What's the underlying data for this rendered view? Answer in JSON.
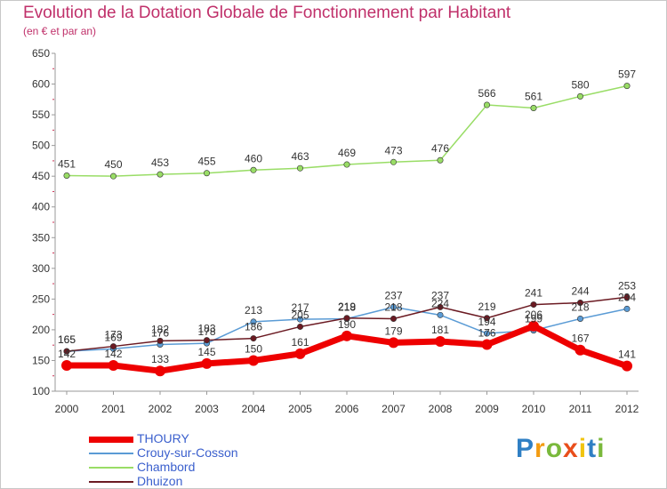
{
  "chart_data": {
    "type": "line",
    "title": "Evolution de la Dotation Globale de Fonctionnement par Habitant",
    "subtitle": "(en € et par an)",
    "xlabel": "",
    "ylabel": "",
    "ylim": [
      100,
      650
    ],
    "yticks": [
      100,
      150,
      200,
      250,
      300,
      350,
      400,
      450,
      500,
      550,
      600,
      650
    ],
    "x": [
      "2000",
      "2001",
      "2002",
      "2003",
      "2004",
      "2005",
      "2006",
      "2007",
      "2008",
      "2009",
      "2010",
      "2011",
      "2012"
    ],
    "grid": false,
    "legend_position": "bottom-left",
    "series": [
      {
        "name": "THOURY",
        "color": "#ee0000",
        "values": [
          142,
          142,
          133,
          145,
          150,
          161,
          190,
          179,
          181,
          176,
          206,
          167,
          141
        ]
      },
      {
        "name": "Crouy-sur-Cosson",
        "color": "#5a9bd5",
        "values": [
          165,
          169,
          176,
          178,
          213,
          217,
          218,
          237,
          224,
          194,
          199,
          218,
          234
        ]
      },
      {
        "name": "Chambord",
        "color": "#99dd66",
        "values": [
          451,
          450,
          453,
          455,
          460,
          463,
          469,
          473,
          476,
          566,
          561,
          580,
          597
        ]
      },
      {
        "name": "Dhuizon",
        "color": "#6b1a22",
        "values": [
          165,
          173,
          182,
          183,
          186,
          205,
          219,
          218,
          237,
          219,
          241,
          244,
          253
        ]
      }
    ]
  },
  "logo": {
    "letters": [
      "P",
      "r",
      "o",
      "x",
      "i",
      "t",
      "i"
    ],
    "colors": [
      "#2f7fc4",
      "#f39c12",
      "#7ab93c",
      "#e94e1b",
      "#f1c40f",
      "#2f7fc4",
      "#7ab93c"
    ]
  }
}
